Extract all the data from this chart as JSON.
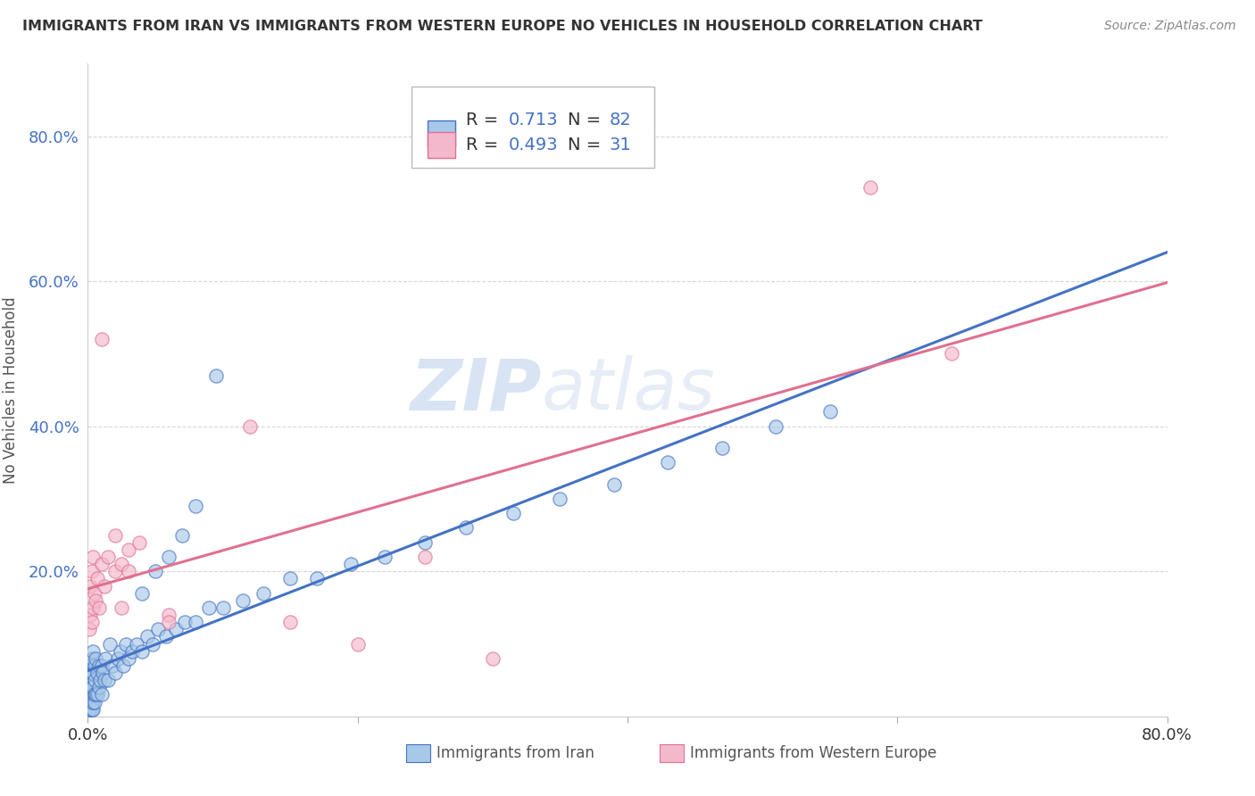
{
  "title": "IMMIGRANTS FROM IRAN VS IMMIGRANTS FROM WESTERN EUROPE NO VEHICLES IN HOUSEHOLD CORRELATION CHART",
  "source": "Source: ZipAtlas.com",
  "ylabel": "No Vehicles in Household",
  "xlim": [
    0,
    0.8
  ],
  "ylim": [
    0.0,
    0.9
  ],
  "yticks": [
    0.0,
    0.2,
    0.4,
    0.6,
    0.8
  ],
  "ytick_labels": [
    "",
    "20.0%",
    "40.0%",
    "60.0%",
    "80.0%"
  ],
  "xticks": [
    0.0,
    0.2,
    0.4,
    0.6,
    0.8
  ],
  "xtick_labels": [
    "0.0%",
    "",
    "",
    "",
    "80.0%"
  ],
  "series1_color": "#a8c8e8",
  "series1_edge": "#4472c4",
  "series2_color": "#f4b8cc",
  "series2_edge": "#e07090",
  "line1_color": "#4472c4",
  "line2_color": "#e07090",
  "background_color": "#ffffff",
  "grid_color": "#cccccc",
  "watermark_zip": "ZIP",
  "watermark_atlas": "atlas",
  "legend_R1": "0.713",
  "legend_N1": "82",
  "legend_R2": "0.493",
  "legend_N2": "31",
  "iran_x": [
    0.001,
    0.001,
    0.001,
    0.001,
    0.001,
    0.002,
    0.002,
    0.002,
    0.002,
    0.002,
    0.002,
    0.002,
    0.002,
    0.003,
    0.003,
    0.003,
    0.003,
    0.003,
    0.003,
    0.004,
    0.004,
    0.004,
    0.004,
    0.004,
    0.005,
    0.005,
    0.005,
    0.005,
    0.006,
    0.006,
    0.007,
    0.007,
    0.008,
    0.008,
    0.009,
    0.01,
    0.01,
    0.011,
    0.012,
    0.013,
    0.015,
    0.016,
    0.018,
    0.02,
    0.022,
    0.024,
    0.026,
    0.028,
    0.03,
    0.033,
    0.036,
    0.04,
    0.044,
    0.048,
    0.052,
    0.058,
    0.065,
    0.072,
    0.08,
    0.09,
    0.1,
    0.115,
    0.13,
    0.15,
    0.17,
    0.195,
    0.22,
    0.25,
    0.28,
    0.315,
    0.35,
    0.39,
    0.43,
    0.47,
    0.51,
    0.55,
    0.04,
    0.05,
    0.06,
    0.07,
    0.08,
    0.095
  ],
  "iran_y": [
    0.02,
    0.03,
    0.04,
    0.05,
    0.01,
    0.01,
    0.02,
    0.03,
    0.04,
    0.05,
    0.06,
    0.07,
    0.02,
    0.01,
    0.02,
    0.03,
    0.04,
    0.06,
    0.08,
    0.01,
    0.02,
    0.04,
    0.06,
    0.09,
    0.02,
    0.03,
    0.05,
    0.07,
    0.03,
    0.08,
    0.03,
    0.06,
    0.04,
    0.07,
    0.05,
    0.03,
    0.07,
    0.06,
    0.05,
    0.08,
    0.05,
    0.1,
    0.07,
    0.06,
    0.08,
    0.09,
    0.07,
    0.1,
    0.08,
    0.09,
    0.1,
    0.09,
    0.11,
    0.1,
    0.12,
    0.11,
    0.12,
    0.13,
    0.13,
    0.15,
    0.15,
    0.16,
    0.17,
    0.19,
    0.19,
    0.21,
    0.22,
    0.24,
    0.26,
    0.28,
    0.3,
    0.32,
    0.35,
    0.37,
    0.4,
    0.42,
    0.17,
    0.2,
    0.22,
    0.25,
    0.29,
    0.47
  ],
  "western_x": [
    0.001,
    0.002,
    0.002,
    0.003,
    0.003,
    0.004,
    0.004,
    0.005,
    0.006,
    0.007,
    0.008,
    0.01,
    0.012,
    0.015,
    0.02,
    0.025,
    0.03,
    0.038,
    0.02,
    0.025,
    0.03,
    0.06,
    0.06,
    0.12,
    0.15,
    0.2,
    0.25,
    0.3,
    0.58,
    0.64,
    0.01
  ],
  "western_y": [
    0.12,
    0.14,
    0.18,
    0.13,
    0.2,
    0.15,
    0.22,
    0.17,
    0.16,
    0.19,
    0.15,
    0.21,
    0.18,
    0.22,
    0.2,
    0.21,
    0.23,
    0.24,
    0.25,
    0.15,
    0.2,
    0.14,
    0.13,
    0.4,
    0.13,
    0.1,
    0.22,
    0.08,
    0.73,
    0.5,
    0.52
  ]
}
